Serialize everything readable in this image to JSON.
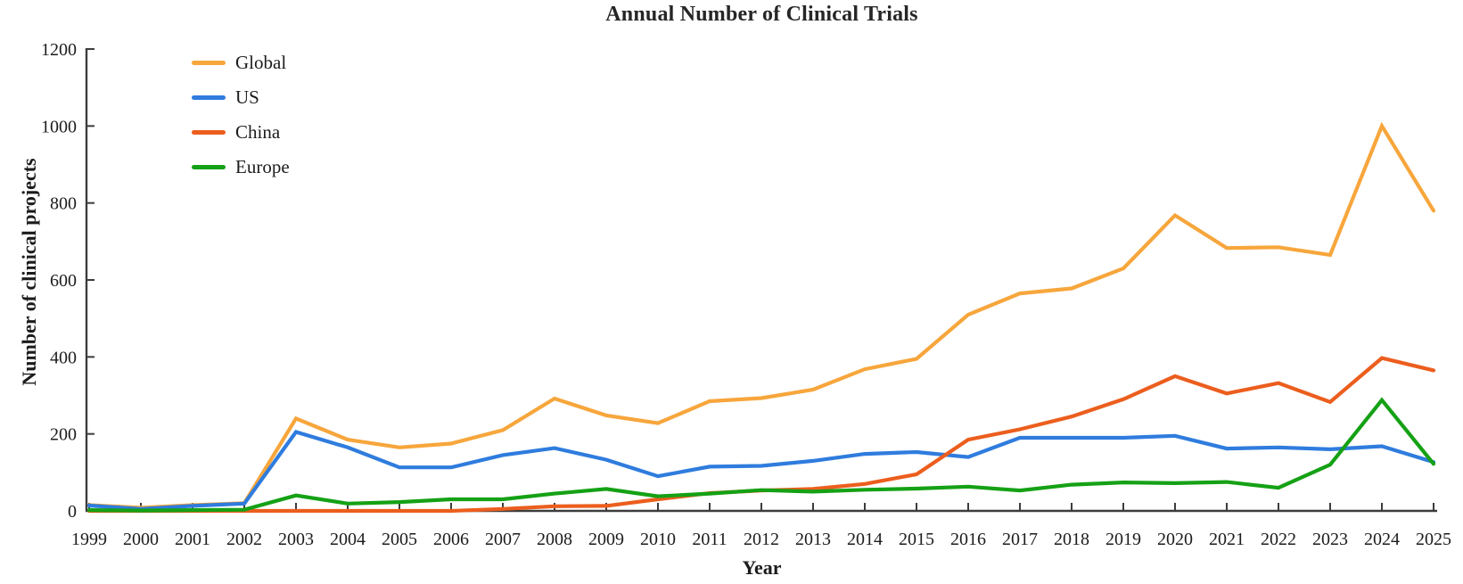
{
  "title": "Annual Number of Clinical Trials",
  "chart_data": {
    "type": "line",
    "title": "Annual Number of Clinical Trials",
    "xlabel": "Year",
    "ylabel": "Number of clinical projects",
    "x": [
      1999,
      2000,
      2001,
      2002,
      2003,
      2004,
      2005,
      2006,
      2007,
      2008,
      2009,
      2010,
      2011,
      2012,
      2013,
      2014,
      2015,
      2016,
      2017,
      2018,
      2019,
      2020,
      2021,
      2022,
      2023,
      2024,
      2025
    ],
    "ylim": [
      0,
      1200
    ],
    "yticks": [
      0,
      200,
      400,
      600,
      800,
      1000,
      1200
    ],
    "grid": false,
    "legend_position": "top-left",
    "series": [
      {
        "name": "Global",
        "color": "#F7A63C",
        "values": [
          15,
          8,
          15,
          20,
          240,
          185,
          165,
          175,
          210,
          292,
          248,
          228,
          285,
          293,
          315,
          368,
          395,
          510,
          565,
          578,
          630,
          768,
          683,
          685,
          665,
          1000,
          780
        ]
      },
      {
        "name": "US",
        "color": "#2F7CDE",
        "values": [
          14,
          5,
          13,
          19,
          205,
          165,
          113,
          113,
          145,
          163,
          133,
          90,
          115,
          117,
          130,
          148,
          153,
          140,
          190,
          190,
          190,
          195,
          162,
          165,
          160,
          168,
          127
        ]
      },
      {
        "name": "China",
        "color": "#EC5E1E",
        "values": [
          0,
          0,
          0,
          0,
          0,
          0,
          0,
          0,
          5,
          12,
          13,
          30,
          46,
          53,
          57,
          70,
          95,
          185,
          212,
          245,
          290,
          350,
          305,
          332,
          283,
          397,
          365
        ]
      },
      {
        "name": "Europe",
        "color": "#15A115",
        "values": [
          2,
          1,
          2,
          3,
          40,
          19,
          23,
          30,
          30,
          45,
          57,
          38,
          45,
          54,
          50,
          55,
          58,
          63,
          53,
          68,
          74,
          72,
          75,
          60,
          120,
          288,
          122
        ]
      }
    ]
  },
  "colors": {
    "axis": "#3C3C3C",
    "text": "#1C1C1C"
  }
}
